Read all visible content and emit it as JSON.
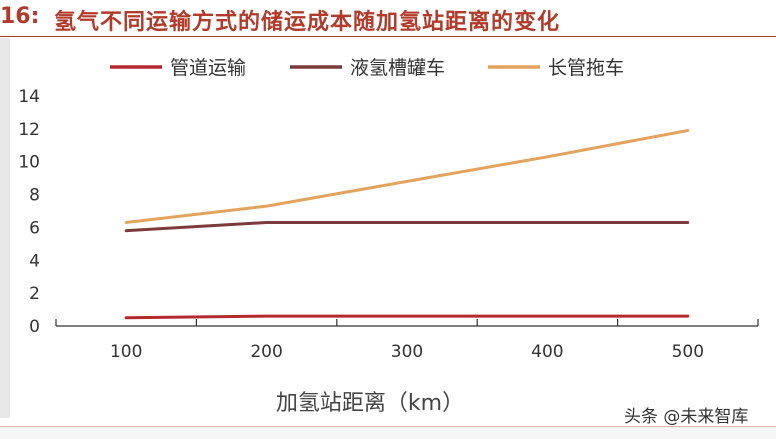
{
  "figure_label": "16:",
  "title": "氢气不同运输方式的储运成本随加氢站距离的变化",
  "watermark": "头条 @未来智库",
  "chart_data": {
    "type": "line",
    "title": "氢气不同运输方式的储运成本随加氢站距离的变化",
    "xlabel": "加氢站距离（km）",
    "ylabel": "",
    "x": [
      100,
      200,
      300,
      400,
      500
    ],
    "xticks": [
      "100",
      "200",
      "300",
      "400",
      "500"
    ],
    "ylim": [
      0,
      14
    ],
    "yticks": [
      "0",
      "2",
      "4",
      "6",
      "8",
      "10",
      "12",
      "14"
    ],
    "grid": false,
    "legend_position": "top",
    "series": [
      {
        "name": "管道运输",
        "color": "#b2292e",
        "values": [
          0.5,
          0.6,
          0.6,
          0.6,
          0.6
        ]
      },
      {
        "name": "液氢槽罐车",
        "color": "#7b3b3b",
        "values": [
          5.8,
          6.3,
          6.3,
          6.3,
          6.3
        ]
      },
      {
        "name": "长管拖车",
        "color": "#e3a35d",
        "values": [
          6.3,
          7.3,
          8.8,
          10.3,
          11.9
        ]
      }
    ]
  }
}
